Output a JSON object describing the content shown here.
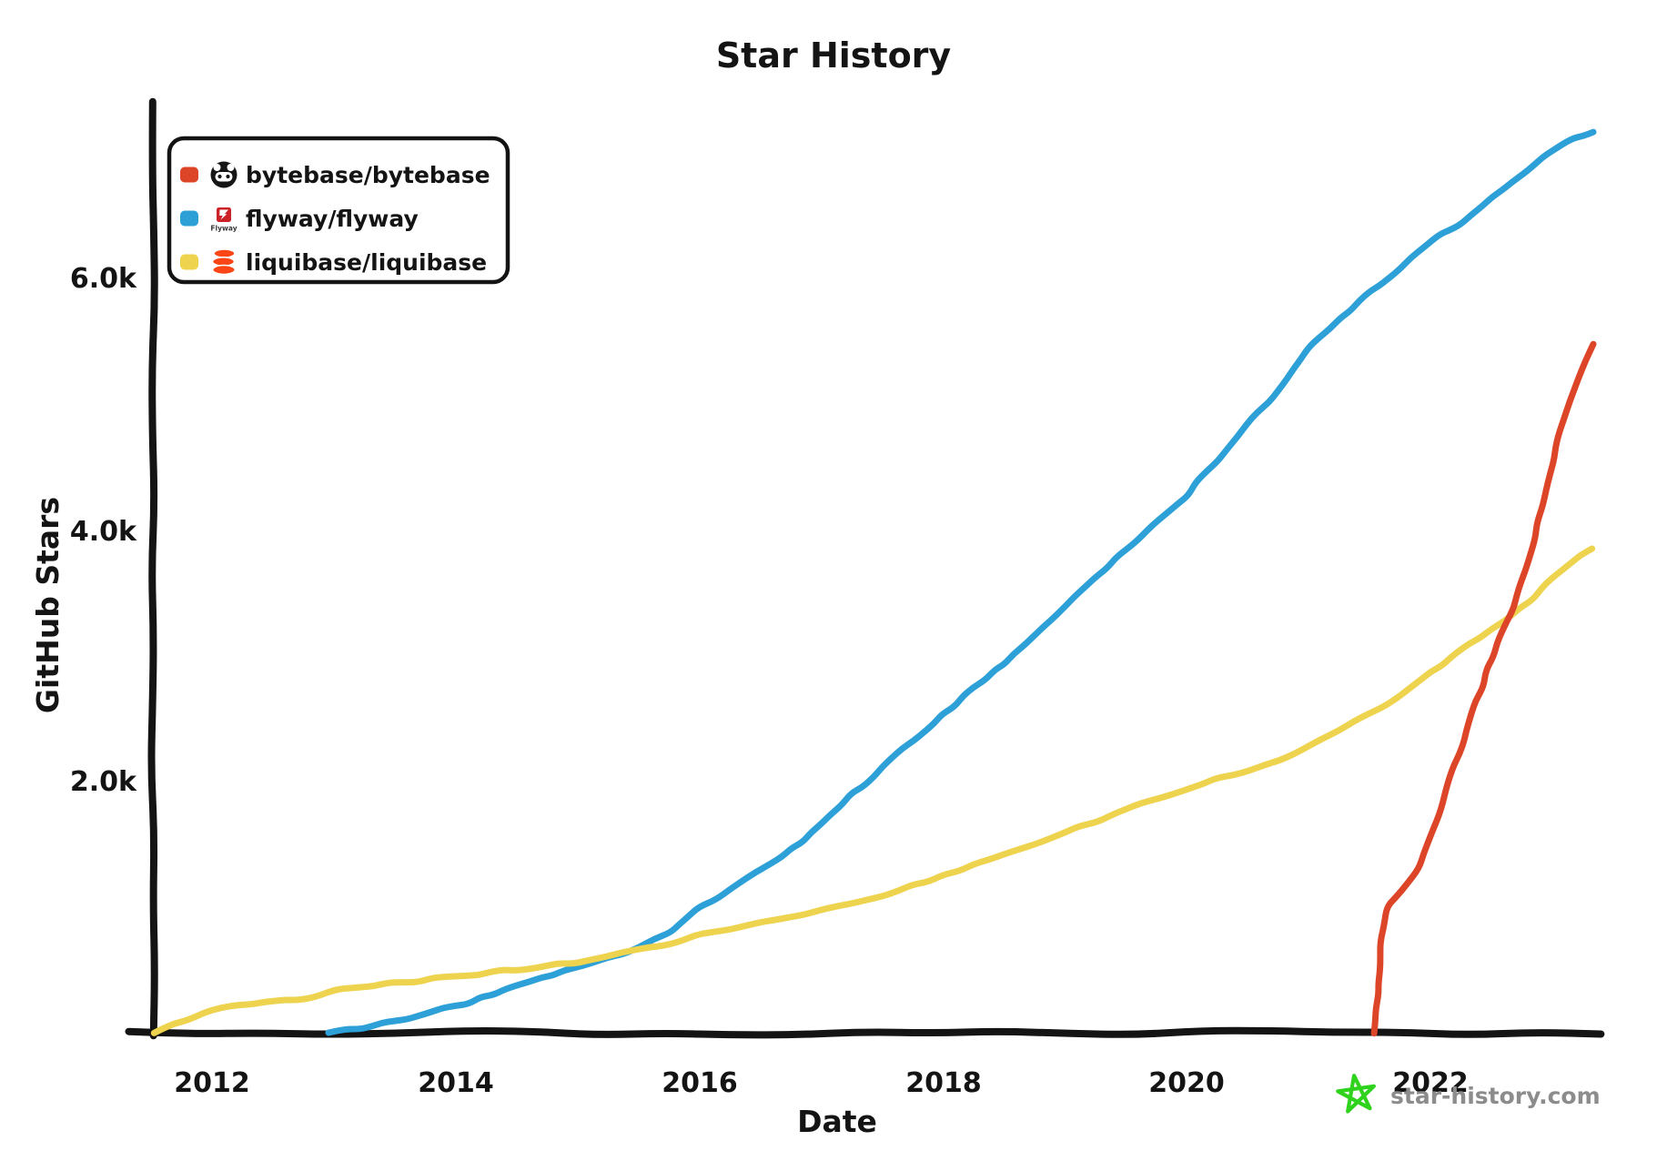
{
  "title": "Star History",
  "axes": {
    "x_label": "Date",
    "y_label": "GitHub Stars",
    "x_ticks": [
      "2012",
      "2014",
      "2016",
      "2018",
      "2020",
      "2022"
    ],
    "y_ticks": [
      "6.0k",
      "4.0k",
      "2.0k"
    ]
  },
  "legend": [
    {
      "name": "bytebase/bytebase",
      "color": "#dd4528",
      "icon": "bytebase-avatar-icon"
    },
    {
      "name": "flyway/flyway",
      "color": "#2da0d8",
      "icon": "flyway-logo-icon"
    },
    {
      "name": "liquibase/liquibase",
      "color": "#eed34f",
      "icon": "liquibase-logo-icon"
    }
  ],
  "watermark": {
    "label": "star-history.com",
    "star_color": "#2fd31d",
    "text_color": "#8c8c8c",
    "flyway_caption": "Flyway"
  },
  "chart_data": {
    "type": "line",
    "title": "Star History",
    "xlabel": "Date",
    "ylabel": "GitHub Stars",
    "xlim": [
      2011.5,
      2023.4
    ],
    "ylim": [
      0,
      7400
    ],
    "x_tick_values": [
      2012,
      2014,
      2016,
      2018,
      2020,
      2022
    ],
    "y_tick_values": [
      6000,
      4000,
      2000
    ],
    "grid": false,
    "legend_position": "top-left",
    "draw_order": [
      1,
      2,
      0
    ],
    "series": [
      {
        "name": "bytebase/bytebase",
        "color": "#dd4528",
        "points": [
          [
            2021.54,
            0
          ],
          [
            2021.56,
            300
          ],
          [
            2021.58,
            600
          ],
          [
            2021.61,
            870
          ],
          [
            2021.65,
            1000
          ],
          [
            2021.72,
            1090
          ],
          [
            2021.8,
            1180
          ],
          [
            2021.9,
            1320
          ],
          [
            2022.0,
            1540
          ],
          [
            2022.1,
            1840
          ],
          [
            2022.2,
            2130
          ],
          [
            2022.3,
            2420
          ],
          [
            2022.42,
            2760
          ],
          [
            2022.55,
            3130
          ],
          [
            2022.67,
            3390
          ],
          [
            2022.78,
            3690
          ],
          [
            2022.88,
            4060
          ],
          [
            2022.98,
            4450
          ],
          [
            2023.06,
            4780
          ],
          [
            2023.14,
            5020
          ],
          [
            2023.22,
            5240
          ],
          [
            2023.33,
            5480
          ]
        ]
      },
      {
        "name": "flyway/flyway",
        "color": "#2da0d8",
        "points": [
          [
            2012.95,
            0
          ],
          [
            2013.2,
            40
          ],
          [
            2013.5,
            100
          ],
          [
            2013.8,
            160
          ],
          [
            2014.1,
            240
          ],
          [
            2014.4,
            340
          ],
          [
            2014.7,
            440
          ],
          [
            2015.0,
            520
          ],
          [
            2015.25,
            590
          ],
          [
            2015.5,
            680
          ],
          [
            2015.75,
            810
          ],
          [
            2016.0,
            1000
          ],
          [
            2016.25,
            1140
          ],
          [
            2016.5,
            1300
          ],
          [
            2016.75,
            1460
          ],
          [
            2017.0,
            1660
          ],
          [
            2017.25,
            1900
          ],
          [
            2017.5,
            2120
          ],
          [
            2017.75,
            2340
          ],
          [
            2018.0,
            2540
          ],
          [
            2018.25,
            2750
          ],
          [
            2018.5,
            2950
          ],
          [
            2018.75,
            3170
          ],
          [
            2019.0,
            3400
          ],
          [
            2019.25,
            3630
          ],
          [
            2019.5,
            3860
          ],
          [
            2019.75,
            4080
          ],
          [
            2020.0,
            4290
          ],
          [
            2020.25,
            4560
          ],
          [
            2020.5,
            4840
          ],
          [
            2020.75,
            5140
          ],
          [
            2021.0,
            5470
          ],
          [
            2021.25,
            5690
          ],
          [
            2021.5,
            5900
          ],
          [
            2021.75,
            6090
          ],
          [
            2021.95,
            6260
          ],
          [
            2022.08,
            6360
          ],
          [
            2022.25,
            6450
          ],
          [
            2022.5,
            6670
          ],
          [
            2022.75,
            6850
          ],
          [
            2023.0,
            7040
          ],
          [
            2023.15,
            7120
          ],
          [
            2023.33,
            7190
          ]
        ]
      },
      {
        "name": "liquibase/liquibase",
        "color": "#eed34f",
        "points": [
          [
            2011.52,
            0
          ],
          [
            2011.65,
            60
          ],
          [
            2011.8,
            110
          ],
          [
            2011.95,
            160
          ],
          [
            2012.1,
            200
          ],
          [
            2012.3,
            235
          ],
          [
            2012.5,
            245
          ],
          [
            2012.7,
            260
          ],
          [
            2012.85,
            290
          ],
          [
            2013.0,
            330
          ],
          [
            2013.2,
            365
          ],
          [
            2013.45,
            390
          ],
          [
            2013.7,
            415
          ],
          [
            2014.0,
            445
          ],
          [
            2014.3,
            480
          ],
          [
            2014.6,
            515
          ],
          [
            2014.85,
            545
          ],
          [
            2015.1,
            575
          ],
          [
            2015.35,
            630
          ],
          [
            2015.6,
            680
          ],
          [
            2015.8,
            720
          ],
          [
            2016.0,
            775
          ],
          [
            2016.25,
            825
          ],
          [
            2016.5,
            875
          ],
          [
            2016.75,
            925
          ],
          [
            2017.0,
            985
          ],
          [
            2017.25,
            1040
          ],
          [
            2017.5,
            1100
          ],
          [
            2017.75,
            1170
          ],
          [
            2018.0,
            1250
          ],
          [
            2018.25,
            1340
          ],
          [
            2018.5,
            1430
          ],
          [
            2018.75,
            1510
          ],
          [
            2019.0,
            1600
          ],
          [
            2019.25,
            1690
          ],
          [
            2019.5,
            1780
          ],
          [
            2019.75,
            1870
          ],
          [
            2020.0,
            1950
          ],
          [
            2020.25,
            2020
          ],
          [
            2020.5,
            2090
          ],
          [
            2020.75,
            2170
          ],
          [
            2021.0,
            2290
          ],
          [
            2021.25,
            2420
          ],
          [
            2021.5,
            2540
          ],
          [
            2021.75,
            2690
          ],
          [
            2022.0,
            2870
          ],
          [
            2022.25,
            3040
          ],
          [
            2022.5,
            3220
          ],
          [
            2022.75,
            3390
          ],
          [
            2023.0,
            3620
          ],
          [
            2023.15,
            3740
          ],
          [
            2023.33,
            3870
          ]
        ]
      }
    ]
  }
}
